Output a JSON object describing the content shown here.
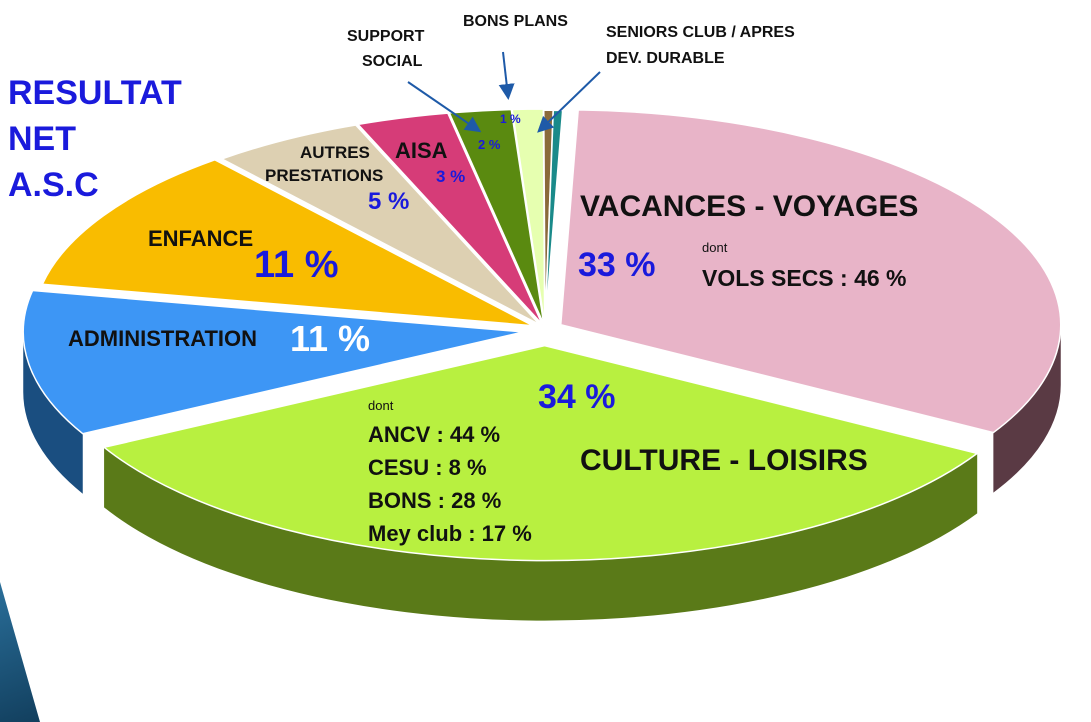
{
  "title": {
    "line1": "RESULTAT",
    "line2": "NET",
    "line3": "A.S.C"
  },
  "chart_data": {
    "type": "pie",
    "title": "RESULTAT NET A.S.C",
    "slices": [
      {
        "label": "VACANCES - VOYAGES",
        "value": 33,
        "display": "33 %",
        "color": "#e8b4c8",
        "side": "#5a3a44"
      },
      {
        "label": "CULTURE - LOISIRS",
        "value": 34,
        "display": "34 %",
        "color": "#b8f040",
        "side": "#5a7a18"
      },
      {
        "label": "ADMINISTRATION",
        "value": 11,
        "display": "11 %",
        "color": "#3d96f5",
        "side": "#1a4e80"
      },
      {
        "label": "ENFANCE",
        "value": 11,
        "display": "11 %",
        "color": "#f9bc00",
        "side": "#6a5018"
      },
      {
        "label": "AUTRES PRESTATIONS",
        "value": 5,
        "display": "5 %",
        "color": "#ddd0b2",
        "side": "#5a5040"
      },
      {
        "label": "AISA",
        "value": 3,
        "display": "3 %",
        "color": "#d63c78",
        "side": "#6a1a3a"
      },
      {
        "label": "SUPPORT SOCIAL",
        "value": 2,
        "display": "2 %",
        "color": "#5a8a10",
        "side": "#2a4a08"
      },
      {
        "label": "BONS PLANS",
        "value": 1,
        "display": "1 %",
        "color": "#e6ffb0",
        "side": "#7a8a50"
      },
      {
        "label": "SENIORS CLUB / APRES",
        "value": 0.3,
        "display": "",
        "color": "#8a6a3a",
        "side": "#4a3a1a"
      },
      {
        "label": "DEV. DURABLE",
        "value": 0.3,
        "display": "",
        "color": "#1a8a8a",
        "side": "#0a4a4a"
      }
    ]
  },
  "labels": {
    "vacances": "VACANCES - VOYAGES",
    "vacances_pct": "33 %",
    "vacances_dont": "dont",
    "vols": "VOLS SECS : 46 %",
    "culture": "CULTURE - LOISIRS",
    "culture_pct": "34 %",
    "culture_dont": "dont",
    "culture_items": [
      "ANCV : 44 %",
      "CESU :    8 %",
      "BONS : 28 %",
      "Mey club : 17 %"
    ],
    "admin": "ADMINISTRATION",
    "admin_pct": "11 %",
    "enfance": "ENFANCE",
    "enfance_pct": "11 %",
    "autres1": "AUTRES",
    "autres2": "PRESTATIONS",
    "autres_pct": "5 %",
    "aisa": "AISA",
    "aisa_pct": "3 %",
    "support1": "SUPPORT",
    "support2": "SOCIAL",
    "support_pct": "2 %",
    "bons": "BONS PLANS",
    "bons_pct": "1 %",
    "seniors1": "SENIORS CLUB / APRES",
    "seniors2": "DEV. DURABLE"
  }
}
